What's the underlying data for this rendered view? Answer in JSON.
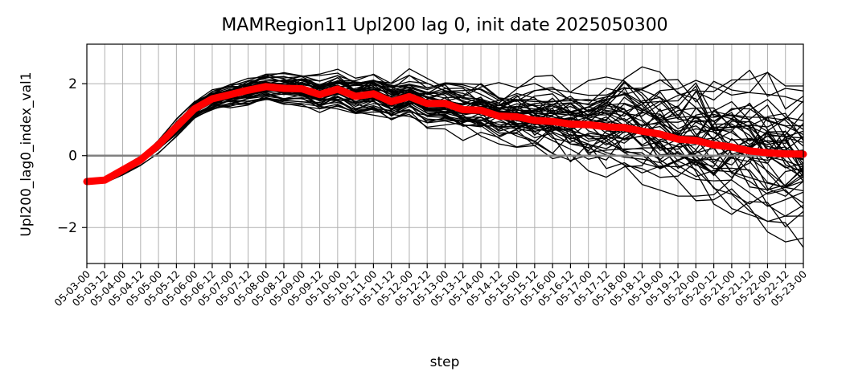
{
  "chart_data": {
    "type": "line",
    "title": "MAMRegion11 Upl200 lag 0, init date 2025050300",
    "xlabel": "step",
    "ylabel": "Upl200_lag0_index_val1",
    "ylim": [
      -3.0,
      3.1
    ],
    "yticks": [
      -2,
      0,
      2
    ],
    "ytick_labels": [
      "−2",
      "0",
      "2"
    ],
    "grid": true,
    "legend": "none",
    "reference_line": {
      "y": 0,
      "color": "#808080"
    },
    "x": [
      "05-03-00",
      "05-03-12",
      "05-04-00",
      "05-04-12",
      "05-05-00",
      "05-05-12",
      "05-06-00",
      "05-06-12",
      "05-07-00",
      "05-07-12",
      "05-08-00",
      "05-08-12",
      "05-09-00",
      "05-09-12",
      "05-10-00",
      "05-10-12",
      "05-11-00",
      "05-11-12",
      "05-12-00",
      "05-12-12",
      "05-13-00",
      "05-13-12",
      "05-14-00",
      "05-14-12",
      "05-15-00",
      "05-15-12",
      "05-16-00",
      "05-16-12",
      "05-17-00",
      "05-17-12",
      "05-18-00",
      "05-18-12",
      "05-19-00",
      "05-19-12",
      "05-20-00",
      "05-20-12",
      "05-21-00",
      "05-21-12",
      "05-22-00",
      "05-22-12",
      "05-23-00"
    ],
    "ensemble_mean": {
      "color": "#ff0000",
      "values": [
        -0.72,
        -0.68,
        -0.4,
        -0.12,
        0.3,
        0.8,
        1.3,
        1.58,
        1.7,
        1.82,
        1.92,
        1.87,
        1.86,
        1.7,
        1.85,
        1.65,
        1.72,
        1.5,
        1.64,
        1.45,
        1.45,
        1.28,
        1.26,
        1.1,
        1.08,
        0.98,
        0.95,
        0.88,
        0.86,
        0.8,
        0.78,
        0.68,
        0.6,
        0.46,
        0.42,
        0.3,
        0.24,
        0.13,
        0.08,
        0.05,
        0.04
      ]
    },
    "ensemble_members": {
      "color": "#000000",
      "count": 50,
      "spread": [
        0.03,
        0.05,
        0.08,
        0.1,
        0.12,
        0.14,
        0.16,
        0.2,
        0.22,
        0.24,
        0.26,
        0.28,
        0.3,
        0.32,
        0.34,
        0.36,
        0.38,
        0.4,
        0.42,
        0.45,
        0.48,
        0.5,
        0.55,
        0.6,
        0.65,
        0.7,
        0.75,
        0.8,
        0.85,
        0.9,
        0.95,
        1.0,
        1.05,
        1.1,
        1.15,
        1.2,
        1.25,
        1.3,
        1.35,
        1.4,
        1.45
      ]
    }
  }
}
